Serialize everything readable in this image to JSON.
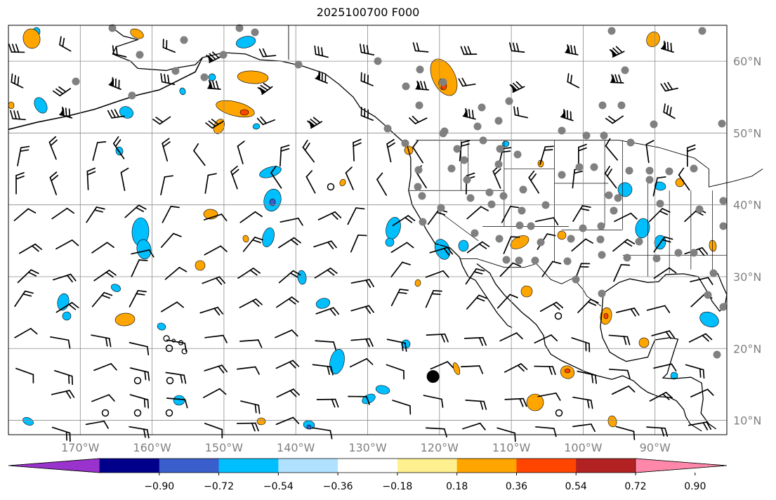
{
  "title": "2025100700 F000",
  "map": {
    "lon_range": [
      -180,
      -80
    ],
    "lat_range": [
      8,
      65
    ],
    "gridlines": true,
    "lon_ticks": [
      {
        "value": -170,
        "label": "170°W"
      },
      {
        "value": -160,
        "label": "160°W"
      },
      {
        "value": -150,
        "label": "150°W"
      },
      {
        "value": -140,
        "label": "140°W"
      },
      {
        "value": -130,
        "label": "130°W"
      },
      {
        "value": -120,
        "label": "120°W"
      },
      {
        "value": -110,
        "label": "110°W"
      },
      {
        "value": -100,
        "label": "100°W"
      },
      {
        "value": -90,
        "label": "90°W"
      }
    ],
    "lat_ticks": [
      {
        "value": 60,
        "label": "60°N"
      },
      {
        "value": 50,
        "label": "50°N"
      },
      {
        "value": 40,
        "label": "40°N"
      },
      {
        "value": 30,
        "label": "30°N"
      },
      {
        "value": 20,
        "label": "20°N"
      },
      {
        "value": 10,
        "label": "10°N"
      }
    ],
    "tick_label_color": "#808080"
  },
  "colorbar": {
    "colors": [
      "#9a32cd",
      "#00008b",
      "#3a5fcd",
      "#00bfff",
      "#b0e2ff",
      "#ffffff",
      "#fff08f",
      "#ffa500",
      "#ff4500",
      "#b22222",
      "#ff88aa"
    ],
    "labels": [
      "−0.90",
      "−0.72",
      "−0.54",
      "−0.36",
      "−0.18",
      "0.18",
      "0.36",
      "0.54",
      "0.72",
      "0.90"
    ]
  },
  "markers": {
    "storm_center": {
      "lon": -120.9,
      "lat": 16.1
    }
  }
}
